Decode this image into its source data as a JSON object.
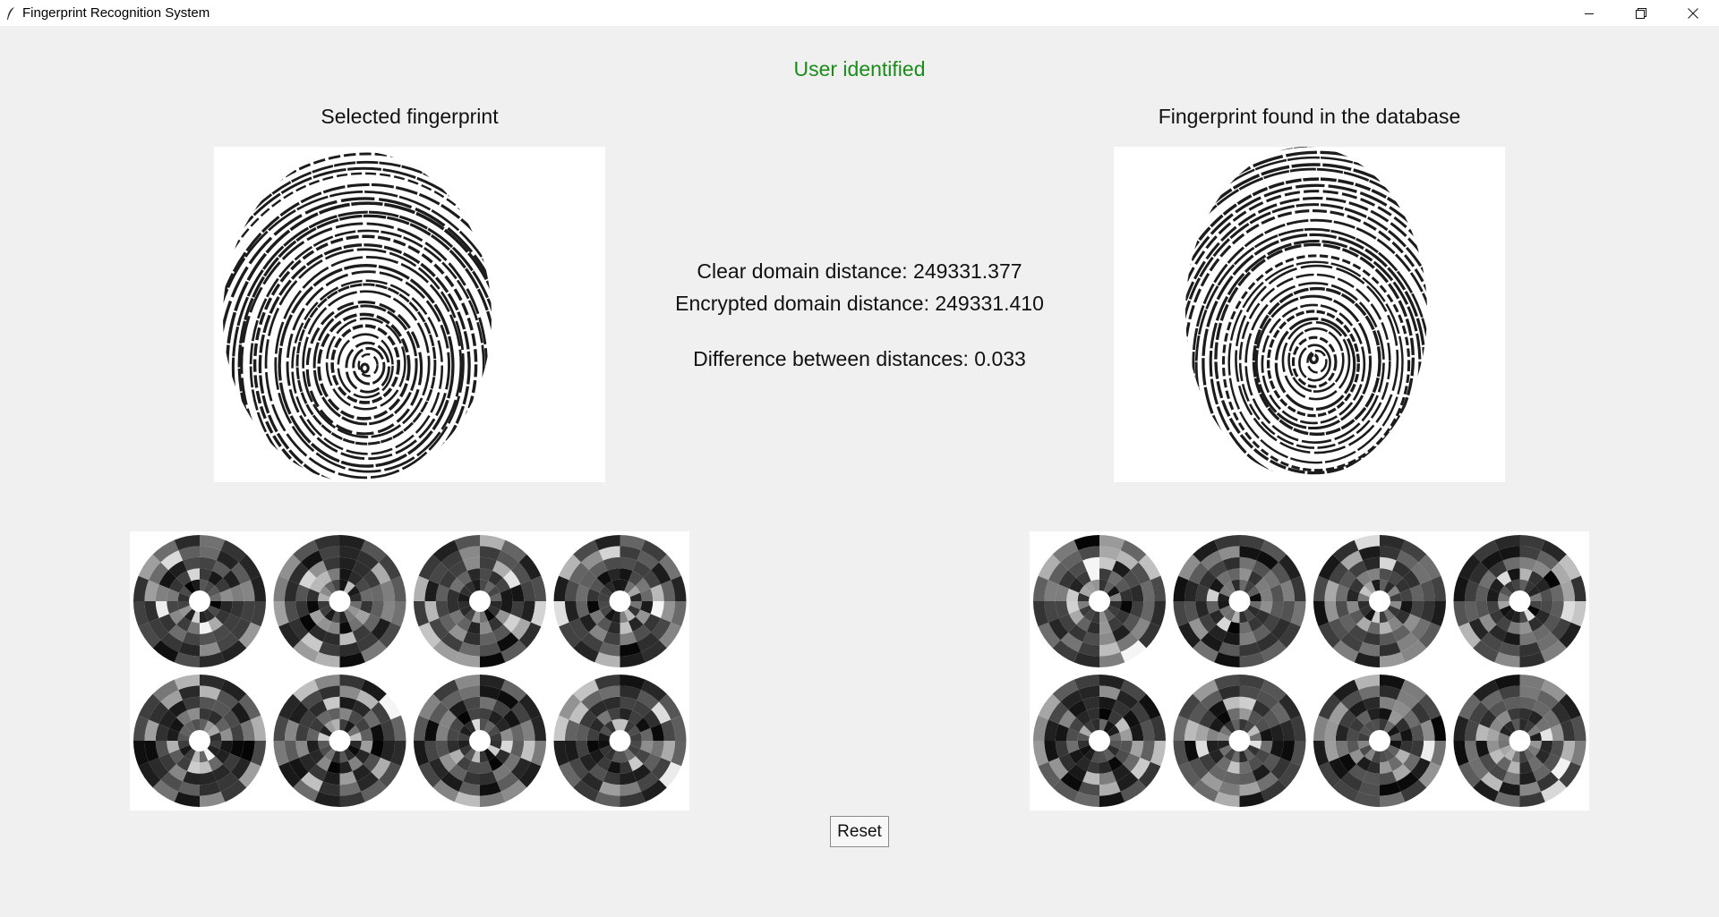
{
  "window": {
    "title": "Fingerprint Recognition System",
    "app_icon": "feather-icon",
    "controls": [
      "minimize-icon",
      "restore-icon",
      "close-icon"
    ]
  },
  "status": {
    "text": "User identified",
    "color": "#1a8c1a"
  },
  "left_panel": {
    "title": "Selected fingerprint"
  },
  "right_panel": {
    "title": "Fingerprint found in the database"
  },
  "distances": {
    "clear": "Clear domain distance: 249331.377",
    "encrypted": "Encrypted domain distance: 249331.410",
    "difference": "Difference between distances: 0.033"
  },
  "sector_maps": {
    "rows": 2,
    "columns": 4
  },
  "reset_button": {
    "label": "Reset"
  }
}
